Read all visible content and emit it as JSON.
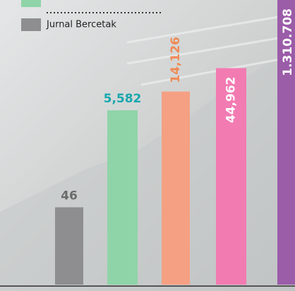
{
  "chart_data": {
    "type": "bar",
    "values": [
      46,
      5582,
      14126,
      44962,
      1310708
    ],
    "value_labels": [
      "46",
      "5,582",
      "14,126",
      "44,962",
      "1.310.708"
    ],
    "colors": [
      "#8e8e90",
      "#8fd4a8",
      "#f5a083",
      "#f27bb2",
      "#9b5ca8"
    ],
    "label_colors": [
      "#6b6b6b",
      "#17a7ad",
      "#f08a55",
      "#ffffff",
      "#ffffff"
    ],
    "log": true,
    "legend": [
      {
        "name": "Jurnal Bercetak",
        "color": "#8e8e90"
      }
    ]
  }
}
